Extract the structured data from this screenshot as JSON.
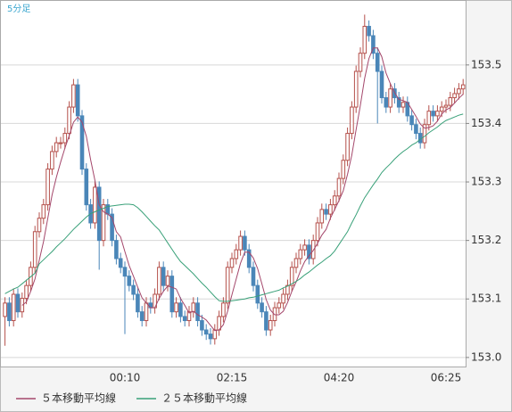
{
  "chart_data": {
    "type": "candlestick",
    "title": "5分足",
    "categories": [
      null,
      null,
      null,
      null,
      null,
      null,
      null,
      null,
      null,
      null,
      null,
      null,
      null,
      null,
      null,
      null,
      null,
      null,
      null,
      null,
      null,
      null,
      null,
      null,
      null,
      null,
      null,
      null,
      "00:10",
      null,
      null,
      null,
      null,
      null,
      null,
      null,
      null,
      null,
      null,
      null,
      null,
      null,
      null,
      null,
      null,
      null,
      null,
      null,
      null,
      null,
      null,
      null,
      null,
      "02:15",
      null,
      null,
      null,
      null,
      null,
      null,
      null,
      null,
      null,
      null,
      null,
      null,
      null,
      null,
      null,
      null,
      null,
      null,
      null,
      null,
      null,
      null,
      null,
      null,
      "04:20",
      null,
      null,
      null,
      null,
      null,
      null,
      null,
      null,
      null,
      null,
      null,
      null,
      null,
      null,
      null,
      null,
      null,
      null,
      null,
      null,
      null,
      null,
      null,
      null,
      "06:25",
      null,
      null,
      null,
      null
    ],
    "open": [
      153.07,
      153.093,
      153.063,
      153.108,
      153.078,
      153.101,
      153.123,
      153.154,
      153.215,
      153.238,
      153.261,
      153.322,
      153.352,
      153.367,
      153.367,
      153.383,
      153.428,
      153.466,
      153.413,
      153.322,
      153.261,
      153.23,
      153.291,
      153.2,
      153.261,
      153.245,
      153.2,
      153.169,
      153.154,
      153.139,
      153.123,
      153.108,
      153.078,
      153.063,
      153.093,
      153.085,
      153.108,
      153.154,
      153.123,
      153.139,
      153.078,
      153.093,
      153.07,
      153.063,
      153.078,
      153.093,
      153.063,
      153.047,
      153.04,
      153.032,
      153.047,
      153.07,
      153.093,
      153.154,
      153.169,
      153.184,
      153.207,
      153.184,
      153.154,
      153.123,
      153.093,
      153.078,
      153.047,
      153.063,
      153.085,
      153.093,
      153.108,
      153.123,
      153.154,
      153.169,
      153.184,
      153.192,
      153.169,
      153.2,
      153.23,
      153.253,
      153.245,
      153.261,
      153.276,
      153.306,
      153.337,
      153.383,
      153.428,
      153.489,
      153.52,
      153.566,
      153.55,
      153.52,
      153.489,
      153.444,
      153.428,
      153.459,
      153.444,
      153.428,
      153.436,
      153.413,
      153.398,
      153.383,
      153.367,
      153.398,
      153.421,
      153.413,
      153.421,
      153.428,
      153.431,
      153.444,
      153.451,
      153.459
    ],
    "high": [
      153.103,
      153.103,
      153.118,
      153.118,
      153.111,
      153.133,
      153.164,
      153.225,
      153.248,
      153.271,
      153.332,
      153.362,
      153.377,
      153.377,
      153.393,
      153.438,
      153.476,
      153.476,
      153.423,
      153.332,
      153.271,
      153.301,
      153.301,
      153.271,
      153.271,
      153.255,
      153.21,
      153.179,
      153.164,
      153.149,
      153.133,
      153.118,
      153.088,
      153.103,
      153.103,
      153.118,
      153.164,
      153.164,
      153.149,
      153.149,
      153.103,
      153.103,
      153.08,
      153.088,
      153.103,
      153.103,
      153.073,
      153.057,
      153.05,
      153.057,
      153.08,
      153.103,
      153.164,
      153.179,
      153.194,
      153.217,
      153.217,
      153.194,
      153.164,
      153.133,
      153.103,
      153.088,
      153.073,
      153.095,
      153.103,
      153.118,
      153.133,
      153.164,
      153.179,
      153.194,
      153.202,
      153.202,
      153.21,
      153.24,
      153.263,
      153.263,
      153.271,
      153.286,
      153.316,
      153.347,
      153.393,
      153.438,
      153.499,
      153.53,
      153.586,
      153.576,
      153.56,
      153.53,
      153.499,
      153.454,
      153.469,
      153.469,
      153.454,
      153.446,
      153.446,
      153.423,
      153.408,
      153.393,
      153.408,
      153.431,
      153.431,
      153.431,
      153.438,
      153.441,
      153.454,
      153.461,
      153.469,
      153.476
    ],
    "low": [
      153.02,
      153.053,
      153.053,
      153.068,
      153.068,
      153.091,
      153.113,
      153.144,
      153.205,
      153.228,
      153.251,
      153.312,
      153.342,
      153.357,
      153.357,
      153.373,
      153.418,
      153.403,
      153.312,
      153.251,
      153.22,
      153.22,
      153.15,
      153.19,
      153.235,
      153.19,
      153.159,
      153.144,
      153.04,
      153.113,
      153.098,
      153.068,
      153.053,
      153.053,
      153.075,
      153.075,
      153.098,
      153.113,
      153.113,
      153.068,
      153.068,
      153.06,
      153.053,
      153.053,
      153.068,
      153.053,
      153.037,
      153.03,
      153.022,
      153.022,
      153.037,
      153.06,
      153.083,
      153.144,
      153.159,
      153.174,
      153.174,
      153.144,
      153.113,
      153.083,
      153.068,
      153.037,
      153.037,
      153.053,
      153.075,
      153.083,
      153.098,
      153.113,
      153.144,
      153.159,
      153.174,
      153.159,
      153.159,
      153.19,
      153.22,
      153.235,
      153.235,
      153.251,
      153.266,
      153.296,
      153.327,
      153.373,
      153.418,
      153.479,
      153.51,
      153.54,
      153.51,
      153.4,
      153.434,
      153.418,
      153.418,
      153.434,
      153.418,
      153.418,
      153.403,
      153.388,
      153.373,
      153.357,
      153.357,
      153.388,
      153.403,
      153.403,
      153.411,
      153.418,
      153.421,
      153.434,
      153.441,
      153.449
    ],
    "close": [
      153.093,
      153.063,
      153.108,
      153.078,
      153.101,
      153.123,
      153.154,
      153.215,
      153.238,
      153.261,
      153.322,
      153.352,
      153.367,
      153.367,
      153.383,
      153.428,
      153.466,
      153.413,
      153.322,
      153.261,
      153.23,
      153.291,
      153.2,
      153.261,
      153.245,
      153.2,
      153.169,
      153.154,
      153.139,
      153.123,
      153.108,
      153.078,
      153.063,
      153.093,
      153.085,
      153.108,
      153.154,
      153.123,
      153.139,
      153.078,
      153.093,
      153.07,
      153.063,
      153.078,
      153.093,
      153.063,
      153.047,
      153.04,
      153.032,
      153.047,
      153.07,
      153.093,
      153.154,
      153.169,
      153.184,
      153.207,
      153.184,
      153.154,
      153.123,
      153.093,
      153.078,
      153.047,
      153.063,
      153.085,
      153.093,
      153.108,
      153.123,
      153.154,
      153.169,
      153.184,
      153.192,
      153.169,
      153.2,
      153.23,
      153.253,
      153.245,
      153.261,
      153.276,
      153.306,
      153.337,
      153.383,
      153.428,
      153.489,
      153.52,
      153.566,
      153.55,
      153.52,
      153.489,
      153.444,
      153.428,
      153.459,
      153.444,
      153.428,
      153.436,
      153.413,
      153.398,
      153.383,
      153.367,
      153.398,
      153.421,
      153.413,
      153.421,
      153.428,
      153.431,
      153.444,
      153.451,
      153.459,
      153.466
    ],
    "up_color": "#b5504b",
    "down_color": "#4a86b8",
    "series": [
      {
        "name": "５本移動平均線",
        "color": "#a4476b",
        "values": [
          null,
          null,
          null,
          null,
          153.089,
          153.095,
          153.113,
          153.134,
          153.166,
          153.198,
          153.238,
          153.278,
          153.308,
          153.334,
          153.358,
          153.379,
          153.402,
          153.411,
          153.402,
          153.378,
          153.338,
          153.303,
          153.261,
          153.249,
          153.245,
          153.239,
          153.215,
          153.206,
          153.181,
          153.157,
          153.139,
          153.12,
          153.102,
          153.093,
          153.085,
          153.085,
          153.101,
          153.113,
          153.122,
          153.12,
          153.117,
          153.101,
          153.089,
          153.076,
          153.079,
          153.073,
          153.069,
          153.064,
          153.055,
          153.046,
          153.047,
          153.056,
          153.079,
          153.107,
          153.134,
          153.161,
          153.18,
          153.18,
          153.17,
          153.152,
          153.126,
          153.099,
          153.081,
          153.073,
          153.073,
          153.079,
          153.094,
          153.113,
          153.129,
          153.148,
          153.164,
          153.174,
          153.183,
          153.195,
          153.209,
          153.219,
          153.238,
          153.253,
          153.268,
          153.285,
          153.313,
          153.346,
          153.389,
          153.431,
          153.477,
          153.511,
          153.529,
          153.529,
          153.514,
          153.486,
          153.468,
          153.453,
          153.441,
          153.439,
          153.436,
          153.424,
          153.412,
          153.399,
          153.392,
          153.393,
          153.396,
          153.404,
          153.416,
          153.423,
          153.427,
          153.435,
          153.443,
          153.45
        ]
      },
      {
        "name": "２５本移動平均線",
        "color": "#38a078",
        "values": [
          153.109,
          153.113,
          153.117,
          153.12,
          153.126,
          153.132,
          153.138,
          153.144,
          153.16,
          153.167,
          153.174,
          153.181,
          153.189,
          153.196,
          153.203,
          153.211,
          153.219,
          153.226,
          153.233,
          153.24,
          153.246,
          153.249,
          153.252,
          153.255,
          153.258,
          153.259,
          153.26,
          153.261,
          153.262,
          153.262,
          153.261,
          153.256,
          153.249,
          153.241,
          153.233,
          153.225,
          153.218,
          153.207,
          153.196,
          153.185,
          153.174,
          153.164,
          153.157,
          153.15,
          153.143,
          153.135,
          153.127,
          153.12,
          153.112,
          153.104,
          153.097,
          153.096,
          153.096,
          153.097,
          153.098,
          153.099,
          153.1,
          153.102,
          153.103,
          153.105,
          153.107,
          153.109,
          153.111,
          153.113,
          153.115,
          153.119,
          153.122,
          153.126,
          153.13,
          153.135,
          153.141,
          153.146,
          153.152,
          153.158,
          153.163,
          153.169,
          153.174,
          153.182,
          153.193,
          153.204,
          153.215,
          153.23,
          153.244,
          153.259,
          153.273,
          153.284,
          153.295,
          153.305,
          153.316,
          153.324,
          153.331,
          153.339,
          153.346,
          153.352,
          153.357,
          153.363,
          153.367,
          153.373,
          153.378,
          153.384,
          153.389,
          153.394,
          153.4,
          153.405,
          153.408,
          153.411,
          153.414,
          153.416
        ]
      }
    ],
    "ylim": [
      152.983,
      153.611
    ],
    "yticks": [
      {
        "value": 153.0,
        "label": "153.0"
      },
      153.1,
      153.2,
      153.3,
      153.4,
      153.5
    ],
    "grid": true
  }
}
